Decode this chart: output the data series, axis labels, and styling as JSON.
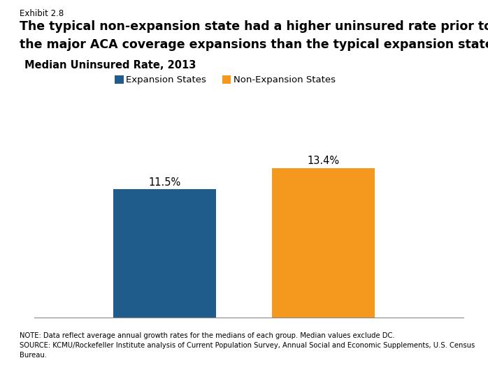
{
  "exhibit_label": "Exhibit 2.8",
  "title_line1": "The typical non-expansion state had a higher uninsured rate prior to",
  "title_line2": "the major ACA coverage expansions than the typical expansion state.",
  "subtitle": "Median Uninsured Rate, 2013",
  "categories": [
    "Expansion States",
    "Non-Expansion States"
  ],
  "values": [
    11.5,
    13.4
  ],
  "bar_colors": [
    "#1f5c8b",
    "#f5981e"
  ],
  "value_labels": [
    "11.5%",
    "13.4%"
  ],
  "legend_labels": [
    "Expansion States",
    "Non-Expansion States"
  ],
  "ylim": [
    0,
    17
  ],
  "note_line1": "NOTE: Data reflect average annual growth rates for the medians of each group. Median values exclude DC.",
  "note_line2": "SOURCE: KCMU/Rockefeller Institute analysis of Current Population Survey, Annual Social and Economic Supplements, U.S. Census",
  "note_line3": "Bureau.",
  "background_color": "#ffffff",
  "bar_positions": [
    0.28,
    0.62
  ],
  "bar_width": 0.22
}
